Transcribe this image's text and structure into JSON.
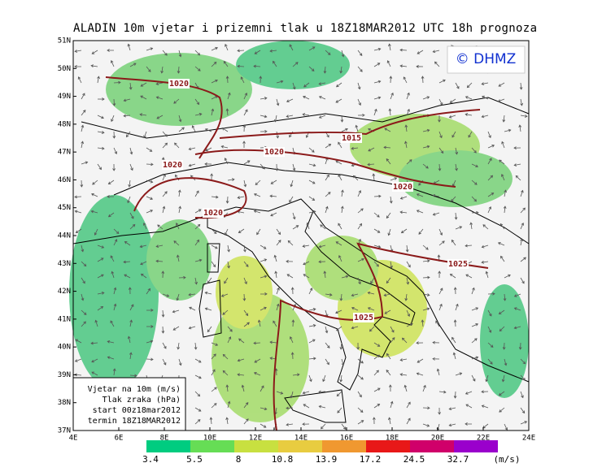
{
  "header": {
    "title": "ALADIN 10m vjetar i prizemni tlak u 18Z18MAR2012 UTC 18h prognoza",
    "copyright": "© DHMZ"
  },
  "axes": {
    "lat_labels": [
      "51N",
      "50N",
      "49N",
      "48N",
      "47N",
      "46N",
      "45N",
      "44N",
      "43N",
      "42N",
      "41N",
      "40N",
      "39N",
      "38N",
      "37N"
    ],
    "lon_labels": [
      "4E",
      "6E",
      "8E",
      "10E",
      "12E",
      "14E",
      "16E",
      "18E",
      "20E",
      "22E",
      "24E"
    ]
  },
  "isobars": [
    {
      "label": "1020"
    },
    {
      "label": "1015"
    },
    {
      "label": "1020"
    },
    {
      "label": "1020"
    },
    {
      "label": "1020"
    },
    {
      "label": "1020"
    },
    {
      "label": "1025"
    },
    {
      "label": "1025"
    }
  ],
  "info_box": {
    "lines": [
      "Vjetar na 10m (m/s)",
      "Tlak zraka (hPa)",
      "start 00z18mar2012",
      "termin 18Z18MAR2012"
    ]
  },
  "colorbar": {
    "levels": [
      "3.4",
      "5.5",
      "8",
      "10.8",
      "13.9",
      "17.2",
      "24.5",
      "32.7"
    ],
    "colors": [
      "#00cc80",
      "#66dd55",
      "#c8e040",
      "#e8cc40",
      "#f09830",
      "#e81818",
      "#d0006a",
      "#9a00cc"
    ],
    "unit": "(m/s)"
  }
}
